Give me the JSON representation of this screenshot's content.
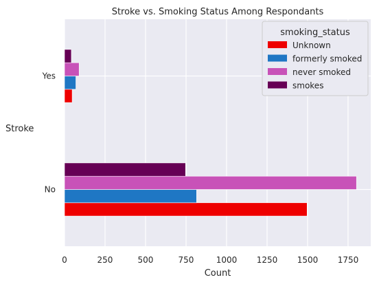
{
  "chart_data": {
    "type": "bar",
    "orientation": "horizontal",
    "title": "Stroke vs. Smoking Status Among Respondants",
    "xlabel": "Count",
    "ylabel": "Stroke",
    "categories": [
      "Yes",
      "No"
    ],
    "xlim": [
      0,
      1890
    ],
    "xticks": [
      0,
      250,
      500,
      750,
      1000,
      1250,
      1500,
      1750
    ],
    "grid": true,
    "legend_title": "smoking_status",
    "legend_position": "top-right",
    "series": [
      {
        "name": "Unknown",
        "color": "#ee0000",
        "values": [
          47,
          1497
        ]
      },
      {
        "name": "formerly smoked",
        "color": "#1f77c4",
        "values": [
          70,
          815
        ]
      },
      {
        "name": "never smoked",
        "color": "#c852b8",
        "values": [
          90,
          1802
        ]
      },
      {
        "name": "smokes",
        "color": "#660055",
        "values": [
          42,
          747
        ]
      }
    ]
  }
}
